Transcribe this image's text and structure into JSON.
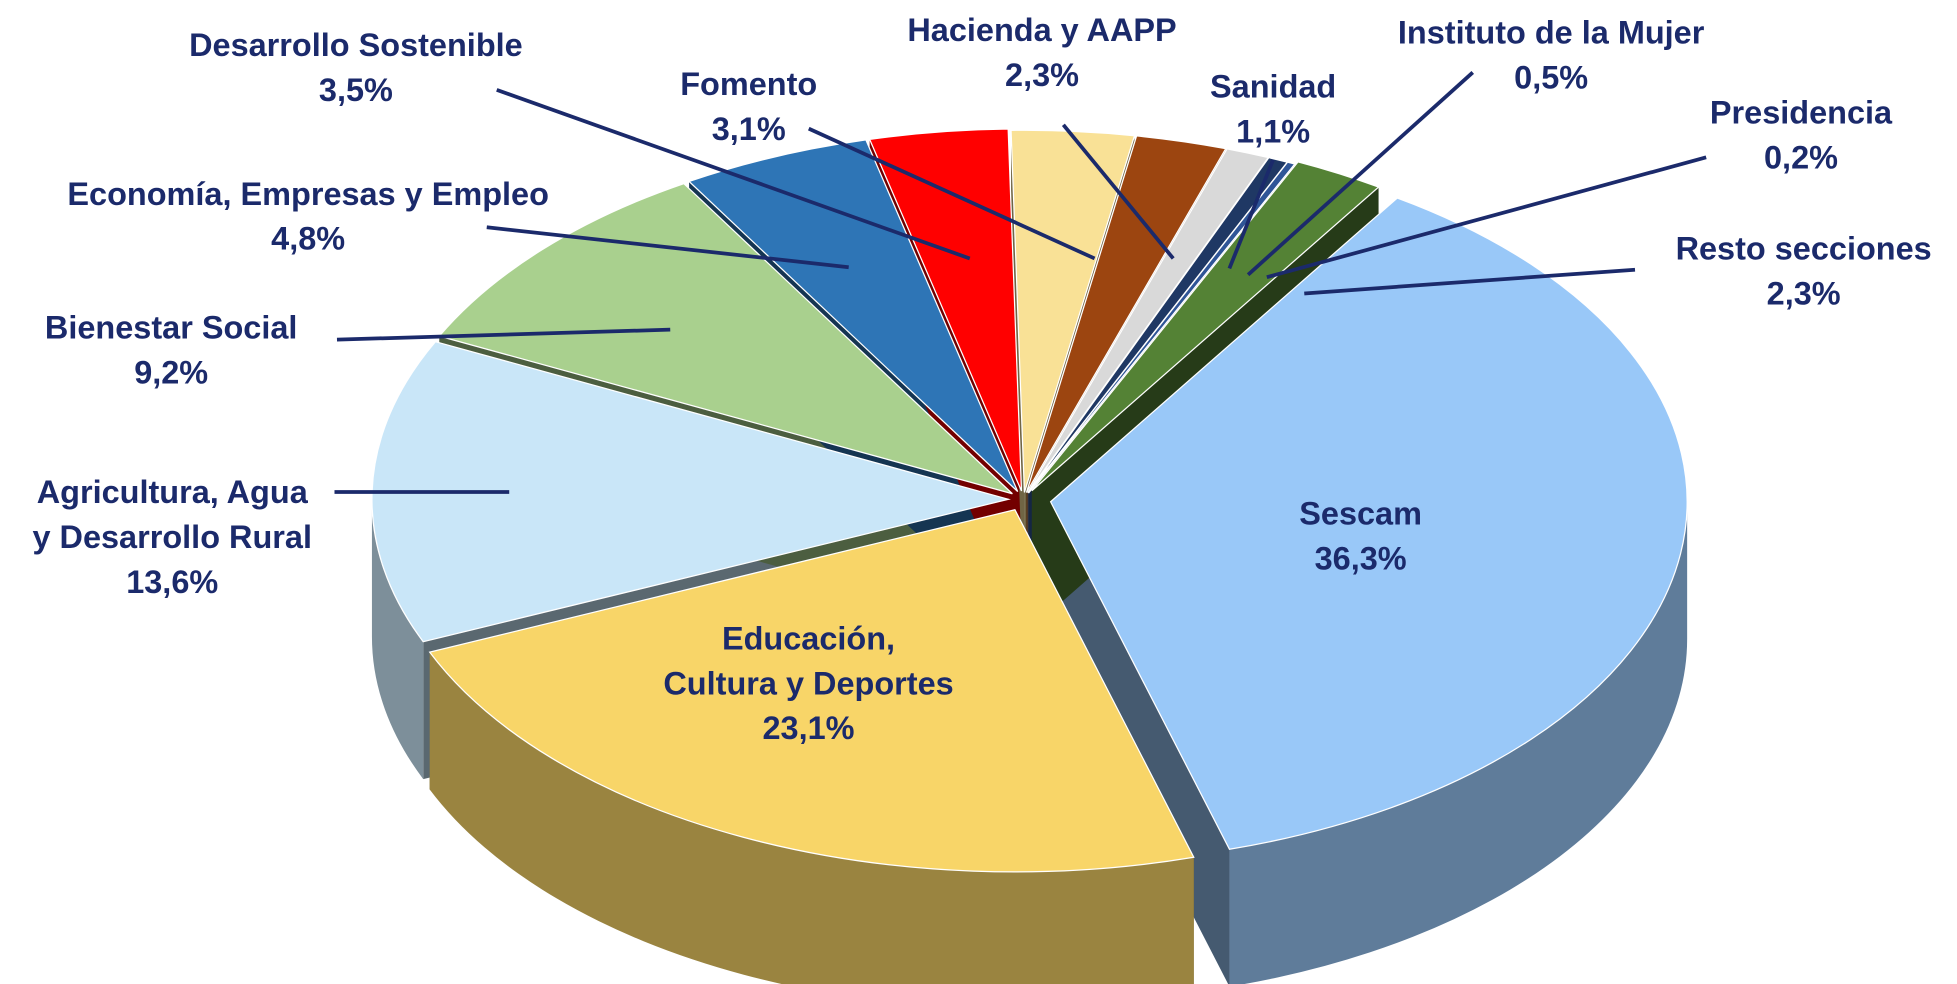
{
  "chart_data": {
    "type": "pie",
    "categories": [
      "Sescam",
      "Educación, Cultura y Deportes",
      "Agricultura, Agua y Desarrollo Rural",
      "Bienestar Social",
      "Economía, Empresas y Empleo",
      "Desarrollo Sostenible",
      "Fomento",
      "Hacienda y AAPP",
      "Sanidad",
      "Instituto de la Mujer",
      "Presidencia",
      "Resto secciones"
    ],
    "values": [
      36.3,
      23.1,
      13.6,
      9.2,
      4.8,
      3.5,
      3.1,
      2.3,
      1.1,
      0.5,
      0.2,
      2.3
    ],
    "value_labels": [
      "36,3%",
      "23,1%",
      "13,6%",
      "9,2%",
      "4,8%",
      "3,5%",
      "3,1%",
      "2,3%",
      "1,1%",
      "0,5%",
      "0,2%",
      "2,3%"
    ],
    "colors": [
      "#99c8f8",
      "#f8d568",
      "#c9e6f8",
      "#a9d08e",
      "#2e75b6",
      "#ff0000",
      "#f9e196",
      "#9c4510",
      "#d9d9d9",
      "#1f3864",
      "#2f5597",
      "#548235"
    ]
  }
}
